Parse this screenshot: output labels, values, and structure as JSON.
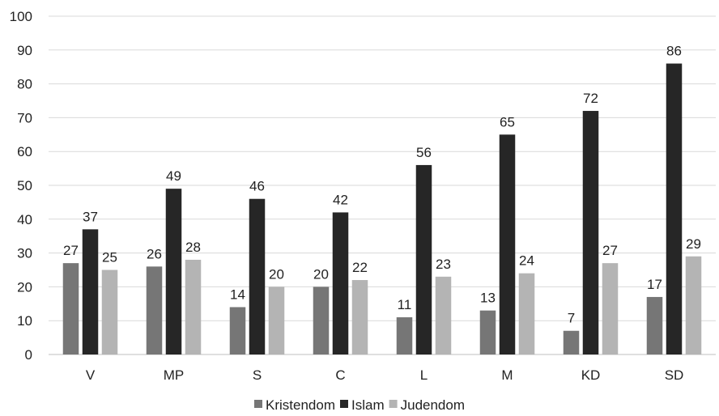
{
  "chart_data": {
    "type": "bar",
    "title": "",
    "xlabel": "",
    "ylabel": "",
    "categories": [
      "V",
      "MP",
      "S",
      "C",
      "L",
      "M",
      "KD",
      "SD"
    ],
    "series": [
      {
        "name": "Kristendom",
        "color": "#767676",
        "values": [
          27,
          26,
          14,
          20,
          11,
          13,
          7,
          17
        ]
      },
      {
        "name": "Islam",
        "color": "#262626",
        "values": [
          37,
          49,
          46,
          42,
          56,
          65,
          72,
          86
        ]
      },
      {
        "name": "Judendom",
        "color": "#b4b4b4",
        "values": [
          25,
          28,
          20,
          22,
          23,
          24,
          27,
          29
        ]
      }
    ],
    "ylim": [
      0,
      100
    ],
    "yticks": [
      0,
      10,
      20,
      30,
      40,
      50,
      60,
      70,
      80,
      90,
      100
    ],
    "grid": true,
    "legend_position": "bottom",
    "data_labels": true
  }
}
